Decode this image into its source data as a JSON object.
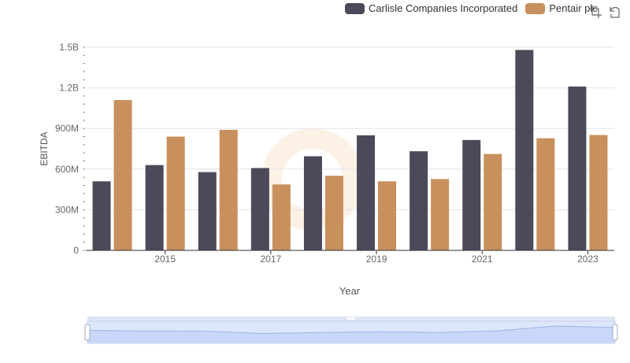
{
  "legend": {
    "carlisle_label": "Carlisle Companies Incorporated",
    "pentair_label": "Pentair plc"
  },
  "toolbox": {
    "zoom_icon": "data-zoom-icon",
    "restore_icon": "restore-icon"
  },
  "chart_data": {
    "type": "bar",
    "xlabel": "Year",
    "ylabel": "EBITDA",
    "categories": [
      "2014",
      "2015",
      "2016",
      "2017",
      "2018",
      "2019",
      "2020",
      "2021",
      "2022",
      "2023"
    ],
    "x_tick_labels": [
      "2015",
      "2017",
      "2019",
      "2021",
      "2023"
    ],
    "y_tick_labels": [
      "0",
      "300M",
      "600M",
      "900M",
      "1.2B",
      "1.5B"
    ],
    "ylim": [
      0,
      1500000000
    ],
    "grid": true,
    "legend_position": "top-right",
    "series": [
      {
        "name": "Carlisle Companies Incorporated",
        "color": "#4a4a5a",
        "values": [
          510000000,
          630000000,
          578000000,
          608000000,
          695000000,
          850000000,
          732000000,
          815000000,
          1480000000,
          1210000000
        ]
      },
      {
        "name": "Pentair plc",
        "color": "#c8905c",
        "values": [
          1110000000,
          840000000,
          890000000,
          487000000,
          551000000,
          510000000,
          527000000,
          712000000,
          828000000,
          852000000
        ]
      }
    ],
    "data_zoom": {
      "start_percent": 0,
      "end_percent": 100
    }
  }
}
